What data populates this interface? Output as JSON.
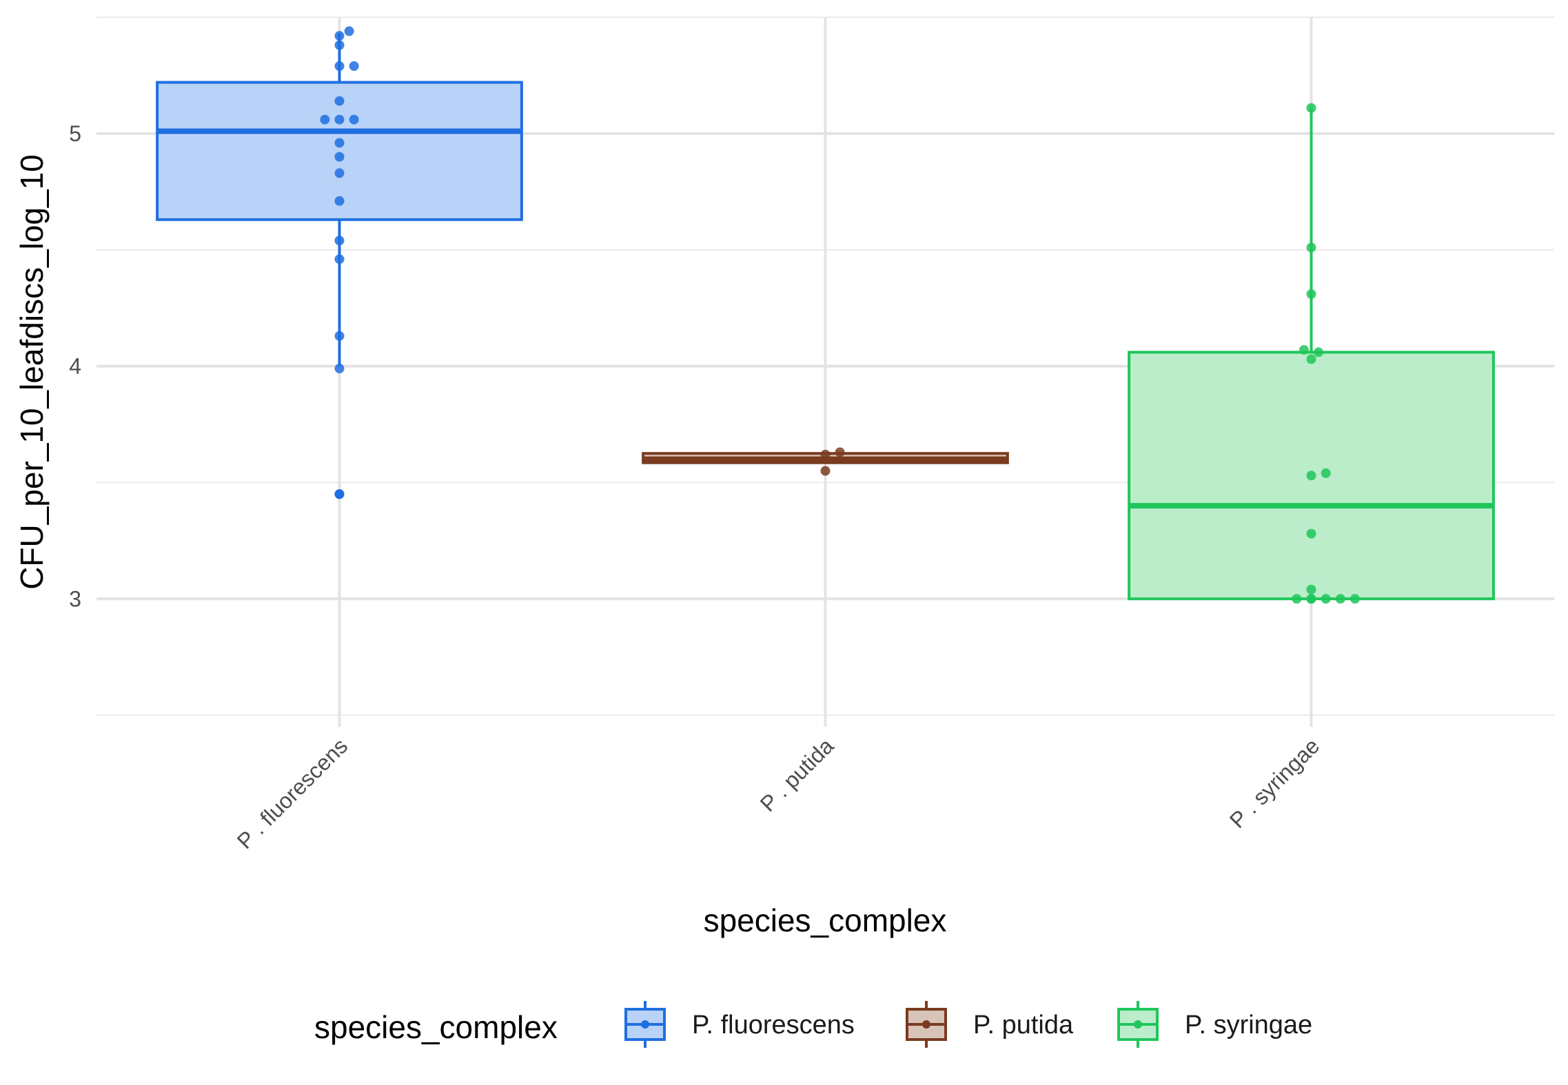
{
  "chart_data": {
    "type": "boxplot",
    "xlabel": "species_complex",
    "ylabel": "CFU_per_10_leafdiscs_log_10",
    "ylim": [
      2.45,
      5.5
    ],
    "y_ticks": [
      "3",
      "4",
      "5"
    ],
    "y_tick_values": [
      3,
      4,
      5
    ],
    "grid": true,
    "legend": {
      "title": "species_complex",
      "position": "bottom"
    },
    "categories": [
      "P . fluorescens",
      "P . putida",
      "P . syringae"
    ],
    "series": [
      {
        "name": "P. fluorescens",
        "color": "#1f6fe0",
        "fill": "#b9d3f8",
        "box": {
          "whisker_low": 4.0,
          "q1": 4.63,
          "median": 5.01,
          "q3": 5.22,
          "whisker_high": 5.43
        },
        "outliers": [
          3.45
        ],
        "points": [
          {
            "dx": 0.02,
            "y": 5.44
          },
          {
            "dx": 0.0,
            "y": 5.42
          },
          {
            "dx": 0.0,
            "y": 5.38
          },
          {
            "dx": 0.0,
            "y": 5.29
          },
          {
            "dx": 0.03,
            "y": 5.29
          },
          {
            "dx": 0.0,
            "y": 5.14
          },
          {
            "dx": -0.03,
            "y": 5.06
          },
          {
            "dx": 0.0,
            "y": 5.06
          },
          {
            "dx": 0.03,
            "y": 5.06
          },
          {
            "dx": 0.0,
            "y": 4.96
          },
          {
            "dx": 0.0,
            "y": 4.9
          },
          {
            "dx": 0.0,
            "y": 4.83
          },
          {
            "dx": 0.0,
            "y": 4.71
          },
          {
            "dx": 0.0,
            "y": 4.54
          },
          {
            "dx": 0.0,
            "y": 4.46
          },
          {
            "dx": 0.0,
            "y": 4.13
          },
          {
            "dx": 0.0,
            "y": 3.99
          },
          {
            "dx": 0.0,
            "y": 3.45
          }
        ]
      },
      {
        "name": "P. putida",
        "color": "#7a3b20",
        "fill": "#d8c3b8",
        "box": {
          "whisker_low": 3.58,
          "q1": 3.585,
          "median": 3.6,
          "q3": 3.625,
          "whisker_high": 3.63
        },
        "outliers": [],
        "points": [
          {
            "dx": 0.0,
            "y": 3.62
          },
          {
            "dx": 0.03,
            "y": 3.63
          },
          {
            "dx": 0.0,
            "y": 3.55
          }
        ]
      },
      {
        "name": "P. syringae",
        "color": "#1fc65a",
        "fill": "#bbedcb",
        "box": {
          "whisker_low": 3.0,
          "q1": 3.0,
          "median": 3.4,
          "q3": 4.06,
          "whisker_high": 5.11
        },
        "outliers": [],
        "points": [
          {
            "dx": 0.0,
            "y": 5.11
          },
          {
            "dx": 0.0,
            "y": 4.51
          },
          {
            "dx": 0.0,
            "y": 4.31
          },
          {
            "dx": -0.015,
            "y": 4.07
          },
          {
            "dx": 0.015,
            "y": 4.06
          },
          {
            "dx": 0.0,
            "y": 4.03
          },
          {
            "dx": 0.0,
            "y": 3.53
          },
          {
            "dx": 0.03,
            "y": 3.54
          },
          {
            "dx": 0.0,
            "y": 3.28
          },
          {
            "dx": 0.0,
            "y": 3.04
          },
          {
            "dx": -0.03,
            "y": 3.0
          },
          {
            "dx": -0.0,
            "y": 3.0
          },
          {
            "dx": 0.03,
            "y": 3.0
          },
          {
            "dx": 0.06,
            "y": 3.0
          },
          {
            "dx": 0.09,
            "y": 3.0
          },
          {
            "dx": 0.0,
            "y": 3.0
          }
        ]
      }
    ]
  }
}
